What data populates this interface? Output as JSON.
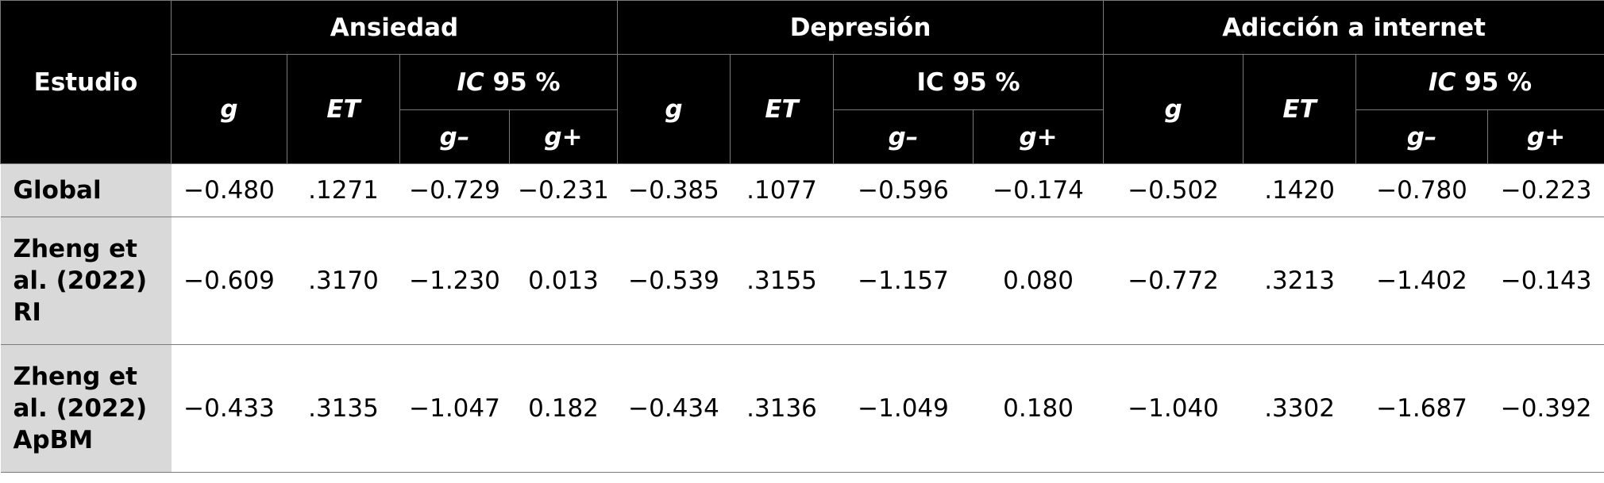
{
  "header": {
    "study": "Estudio",
    "groups": [
      "Ansiedad",
      "Depresión",
      "Adicción a internet"
    ],
    "g": "g",
    "et": "ET",
    "ic_prefix": "IC",
    "ic_suffix": " 95 %",
    "g_minus": "g–",
    "g_plus": "g+"
  },
  "rows": [
    {
      "study": "Global",
      "values": [
        "−0.480",
        ".1271",
        "−0.729",
        "−0.231",
        "−0.385",
        ".1077",
        "−0.596",
        "−0.174",
        "−0.502",
        ".1420",
        "−0.780",
        "−0.223"
      ]
    },
    {
      "study_lines": [
        "Zheng et",
        "al. (2022)",
        "RI"
      ],
      "values": [
        "−0.609",
        ".3170",
        "−1.230",
        "0.013",
        "−0.539",
        ".3155",
        "−1.157",
        "0.080",
        "−0.772",
        ".3213",
        "−1.402",
        "−0.143"
      ]
    },
    {
      "study_lines": [
        "Zheng et",
        "al. (2022)",
        "ApBM"
      ],
      "values": [
        "−0.433",
        ".3135",
        "−1.047",
        "0.182",
        "−0.434",
        ".3136",
        "−1.049",
        "0.180",
        "−1.040",
        ".3302",
        "−1.687",
        "−0.392"
      ]
    }
  ]
}
